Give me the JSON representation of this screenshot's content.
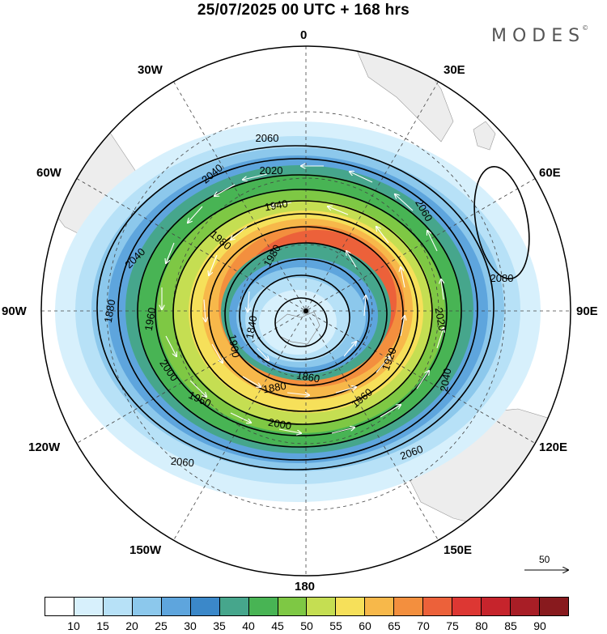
{
  "title": "25/07/2025  00 UTC  + 168 hrs",
  "logo": "MODES",
  "logo_mark": "©",
  "longitude_labels": {
    "top": "0",
    "lon_30e": "30E",
    "lon_60e": "60E",
    "lon_90e": "90E",
    "lon_120e": "120E",
    "lon_150e": "150E",
    "bottom": "180",
    "lon_150w": "150W",
    "lon_120w": "120W",
    "lon_90w": "90W",
    "lon_60w": "60W",
    "lon_30w": "30W"
  },
  "contour_labels": [
    "2060",
    "2040",
    "2020",
    "1940",
    "1980",
    "2060",
    "2080",
    "2040",
    "1960",
    "1880",
    "1840",
    "1860",
    "1900",
    "2000",
    "2020",
    "1980",
    "1920",
    "1960",
    "2040",
    "2060",
    "1960",
    "2000",
    "2060",
    "1880"
  ],
  "vector_scale": {
    "label": "50"
  },
  "colorbar": {
    "colors": [
      "#ffffff",
      "#d7f0fc",
      "#b7e1f7",
      "#8cc8ec",
      "#5ea5dd",
      "#3b88c9",
      "#46a68c",
      "#48b454",
      "#7ec844",
      "#c5de52",
      "#f6e05a",
      "#f7b84a",
      "#f38f3e",
      "#ec613a",
      "#dd3733",
      "#c6242c",
      "#a81e26",
      "#881a1e"
    ],
    "tick_labels": [
      "10",
      "15",
      "20",
      "25",
      "30",
      "35",
      "40",
      "45",
      "50",
      "55",
      "60",
      "65",
      "70",
      "75",
      "80",
      "85",
      "90"
    ]
  }
}
